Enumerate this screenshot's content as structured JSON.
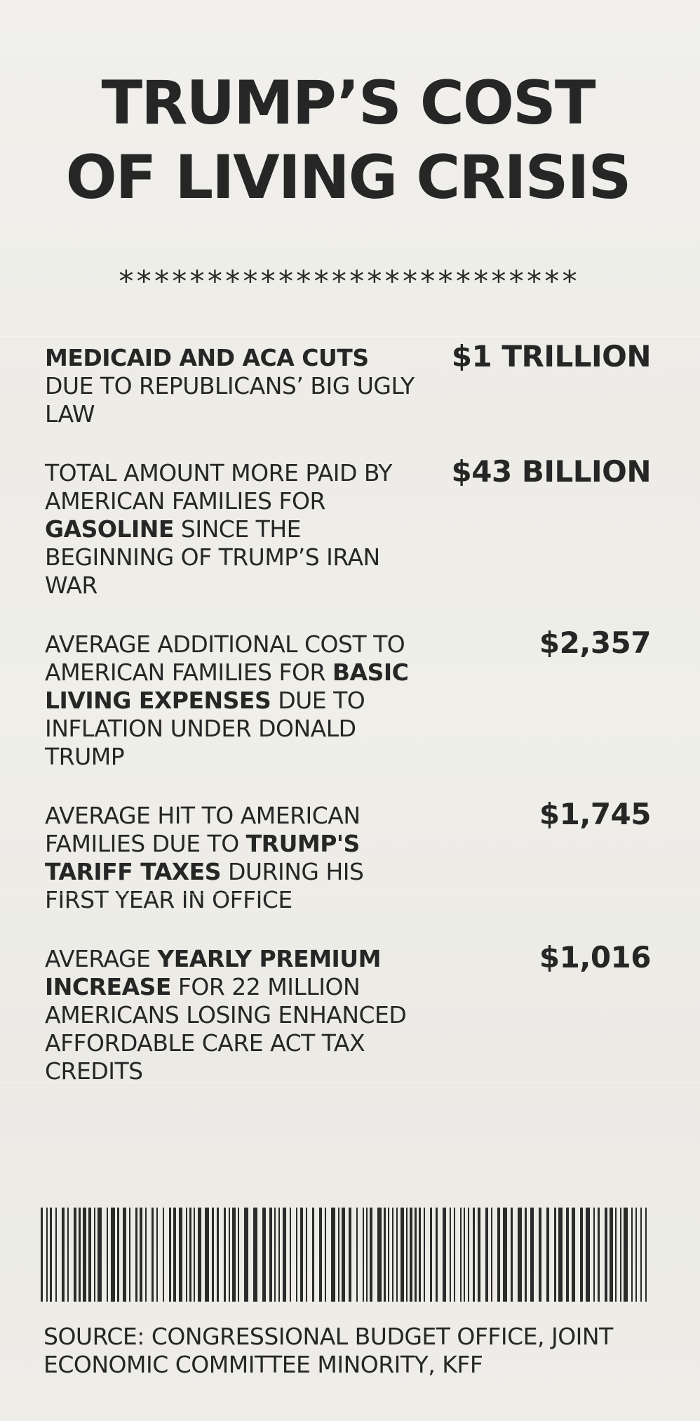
{
  "title": {
    "line1": "TRUMP’S COST",
    "line2": "OF LIVING CRISIS"
  },
  "stars": "**************************",
  "items": [
    {
      "parts": [
        {
          "text": "MEDICAID AND ACA CUTS",
          "bold": true
        },
        {
          "text": " DUE TO REPUBLICANS’ BIG UGLY LAW",
          "bold": false
        }
      ],
      "amount": "$1 TRILLION"
    },
    {
      "parts": [
        {
          "text": "TOTAL AMOUNT MORE PAID BY AMERICAN FAMILIES FOR ",
          "bold": false
        },
        {
          "text": "GASOLINE",
          "bold": true
        },
        {
          "text": " SINCE THE BEGINNING OF TRUMP’S IRAN WAR",
          "bold": false
        }
      ],
      "amount": "$43 BILLION"
    },
    {
      "parts": [
        {
          "text": "AVERAGE ADDITIONAL COST TO AMERICAN FAMILIES FOR ",
          "bold": false
        },
        {
          "text": "BASIC LIVING EXPENSES",
          "bold": true
        },
        {
          "text": " DUE TO INFLATION UNDER DONALD TRUMP",
          "bold": false
        }
      ],
      "amount": "$2,357"
    },
    {
      "parts": [
        {
          "text": "AVERAGE HIT TO AMERICAN FAMILIES DUE TO ",
          "bold": false
        },
        {
          "text": "TRUMP'S TARIFF TAXES",
          "bold": true
        },
        {
          "text": " DURING HIS FIRST YEAR IN OFFICE",
          "bold": false
        }
      ],
      "amount": "$1,745"
    },
    {
      "parts": [
        {
          "text": "AVERAGE ",
          "bold": false
        },
        {
          "text": "YEARLY PREMIUM INCREASE",
          "bold": true
        },
        {
          "text": " FOR 22 MILLION AMERICANS LOSING ENHANCED AFFORDABLE CARE ACT TAX CREDITS",
          "bold": false
        }
      ],
      "amount": "$1,016"
    }
  ],
  "source": "SOURCE: CONGRESSIONAL BUDGET OFFICE, JOINT ECONOMIC COMMITTEE MINORITY, KFF"
}
